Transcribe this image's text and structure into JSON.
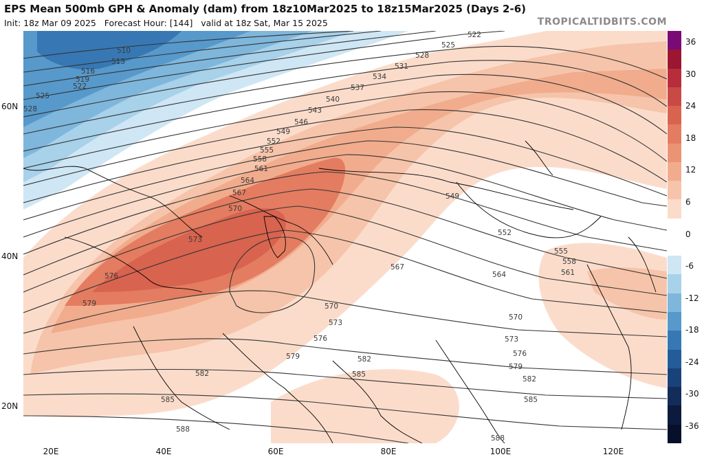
{
  "header": {
    "title": "EPS Mean 500mb GPH & Anomaly (dam) from 18z10Mar2025 to 18z15Mar2025 (Days 2-6)",
    "init": "Init: 18z Mar 09 2025",
    "forecast_hour": "Forecast Hour: [144]",
    "valid": "valid at 18z Sat, Mar 15 2025",
    "brand": "TROPICALTIDBITS.COM"
  },
  "axes": {
    "lat_labels": [
      "60N",
      "40N",
      "20N"
    ],
    "lon_labels": [
      "20E",
      "40E",
      "60E",
      "80E",
      "100E",
      "120E"
    ]
  },
  "colorbar": {
    "ticks": [
      "36",
      "30",
      "24",
      "18",
      "12",
      "6",
      "0",
      "-6",
      "-12",
      "-18",
      "-24",
      "-30",
      "-36"
    ],
    "colors": [
      "#7a0a75",
      "#9b1631",
      "#b72d3b",
      "#c94a45",
      "#d8634f",
      "#e37c60",
      "#eb9474",
      "#f1ac8d",
      "#f6c4aa",
      "#fbdccb",
      "#ffffff",
      "#ffffff",
      "#cfe6f4",
      "#a8d1ea",
      "#7fb6dc",
      "#5799cb",
      "#3778b4",
      "#245b99",
      "#1a427a",
      "#142c5a",
      "#0c1a3d",
      "#07102a"
    ]
  },
  "contour_labels": [
    "510",
    "513",
    "516",
    "519",
    "522",
    "525",
    "528",
    "522",
    "525",
    "528",
    "531",
    "534",
    "537",
    "540",
    "543",
    "546",
    "549",
    "552",
    "555",
    "558",
    "561",
    "564",
    "567",
    "570",
    "573",
    "576",
    "579",
    "582",
    "585",
    "588",
    "549",
    "552",
    "555",
    "558",
    "561",
    "564",
    "567",
    "570",
    "573",
    "576",
    "579",
    "582",
    "585",
    "588",
    "570",
    "573",
    "576",
    "579",
    "582",
    "585"
  ]
}
